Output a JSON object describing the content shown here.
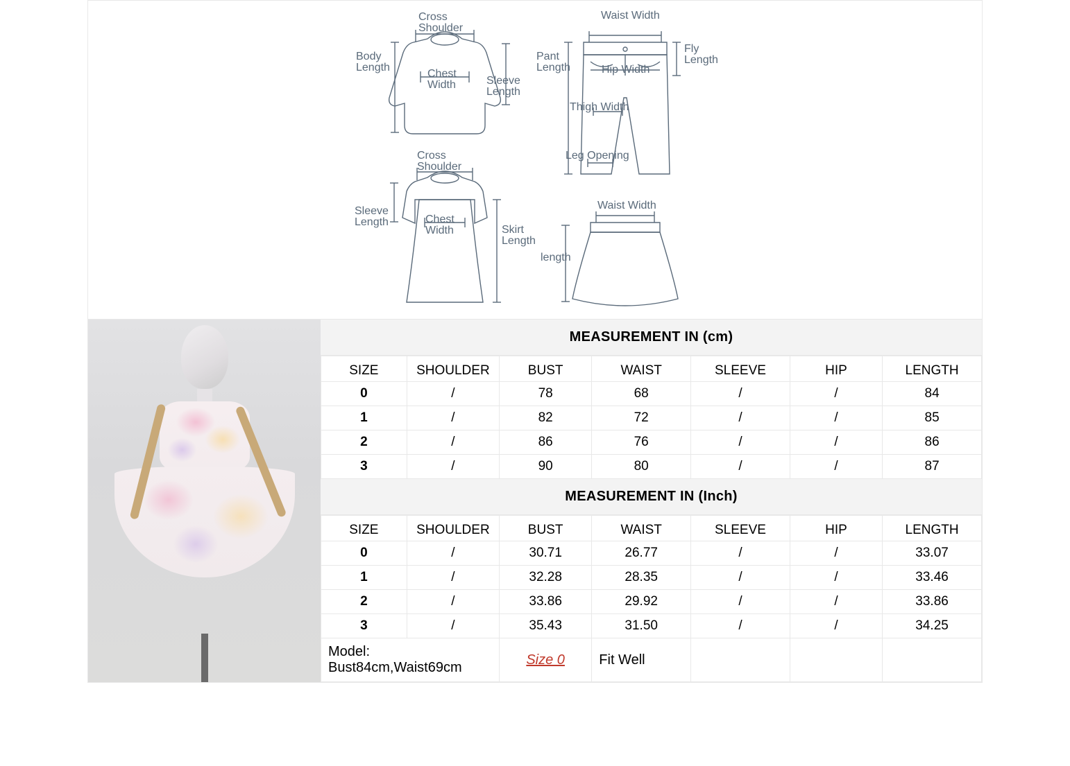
{
  "diagram": {
    "labels": {
      "cross_shoulder_top": "Cross\nShoulder",
      "body_length": "Body\nLength",
      "chest_width_top": "Chest\nWidth",
      "sleeve_length_top": "Sleeve\nLength",
      "cross_shoulder_dress": "Cross\nShoulder",
      "sleeve_length_dress": "Sleeve\nLength",
      "chest_width_dress": "Chest\nWidth",
      "skirt_length": "Skirt\nLength",
      "waist_width_pant": "Waist Width",
      "pant_length": "Pant\nLength",
      "hip_width": "Hip Width",
      "fly_length": "Fly\nLength",
      "thigh_width": "Thigh Width",
      "leg_opening": "Leg Opening",
      "waist_width_skirt": "Waist Width",
      "length_skirt": "length"
    },
    "colors": {
      "stroke": "#5a6a7a",
      "bg": "#ffffff"
    }
  },
  "tables": {
    "cm": {
      "title": "MEASUREMENT IN (cm)",
      "columns": [
        "SIZE",
        "SHOULDER",
        "BUST",
        "WAIST",
        "SLEEVE",
        "HIP",
        "LENGTH"
      ],
      "rows": [
        [
          "0",
          "/",
          "78",
          "68",
          "/",
          "/",
          "84"
        ],
        [
          "1",
          "/",
          "82",
          "72",
          "/",
          "/",
          "85"
        ],
        [
          "2",
          "/",
          "86",
          "76",
          "/",
          "/",
          "86"
        ],
        [
          "3",
          "/",
          "90",
          "80",
          "/",
          "/",
          "87"
        ]
      ]
    },
    "inch": {
      "title": "MEASUREMENT IN (Inch)",
      "columns": [
        "SIZE",
        "SHOULDER",
        "BUST",
        "WAIST",
        "SLEEVE",
        "HIP",
        "LENGTH"
      ],
      "rows": [
        [
          "0",
          "/",
          "30.71",
          "26.77",
          "/",
          "/",
          "33.07"
        ],
        [
          "1",
          "/",
          "32.28",
          "28.35",
          "/",
          "/",
          "33.46"
        ],
        [
          "2",
          "/",
          "33.86",
          "29.92",
          "/",
          "/",
          "33.86"
        ],
        [
          "3",
          "/",
          "35.43",
          "31.50",
          "/",
          "/",
          "34.25"
        ]
      ]
    },
    "footer": {
      "model": "Model: Bust84cm,Waist69cm",
      "size": "Size 0",
      "fit": "Fit Well"
    },
    "colors": {
      "header_bg": "#f3f3f3",
      "border": "#e8e8e8",
      "text": "#000000",
      "size_highlight": "#c0392b"
    },
    "col_widths_pct": [
      13,
      14,
      14,
      15,
      15,
      14,
      15
    ]
  }
}
